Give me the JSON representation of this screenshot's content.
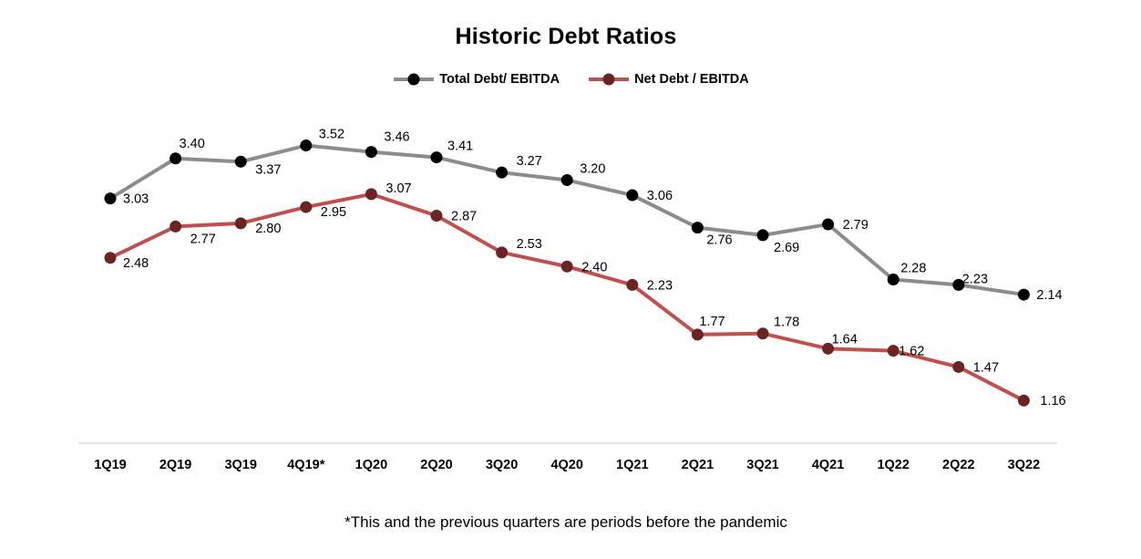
{
  "chart_data": {
    "type": "line",
    "title": "Historic Debt Ratios",
    "categories": [
      "1Q19",
      "2Q19",
      "3Q19",
      "4Q19*",
      "1Q20",
      "2Q20",
      "3Q20",
      "4Q20",
      "1Q21",
      "2Q21",
      "3Q21",
      "4Q21",
      "1Q22",
      "2Q22",
      "3Q22"
    ],
    "series": [
      {
        "name": "Total Debt/ EBITDA",
        "color": "#8c8c8c",
        "marker_color": "#000000",
        "values": [
          3.03,
          3.4,
          3.37,
          3.52,
          3.46,
          3.41,
          3.27,
          3.2,
          3.06,
          2.76,
          2.69,
          2.79,
          2.28,
          2.23,
          2.14
        ],
        "labels": [
          "3.03",
          "3.40",
          "3.37",
          "3.52",
          "3.46",
          "3.41",
          "3.27",
          "3.20",
          "3.06",
          "2.76",
          "2.69",
          "2.79",
          "2.28",
          "2.23",
          "2.14"
        ]
      },
      {
        "name": "Net Debt / EBITDA",
        "color": "#c0504d",
        "marker_color": "#6b2424",
        "values": [
          2.48,
          2.77,
          2.8,
          2.95,
          3.07,
          2.87,
          2.53,
          2.4,
          2.23,
          1.77,
          1.78,
          1.64,
          1.62,
          1.47,
          1.16
        ],
        "labels": [
          "2.48",
          "2.77",
          "2.80",
          "2.95",
          "3.07",
          "2.87",
          "2.53",
          "2.40",
          "2.23",
          "1.77",
          "1.78",
          "1.64",
          "1.62",
          "1.47",
          "1.16"
        ]
      }
    ],
    "ylim": [
      1.0,
      3.8
    ],
    "grid": false,
    "legend_position": "top-center",
    "xlabel": "",
    "ylabel": ""
  },
  "footnote": "*This and the previous quarters are periods before the pandemic"
}
